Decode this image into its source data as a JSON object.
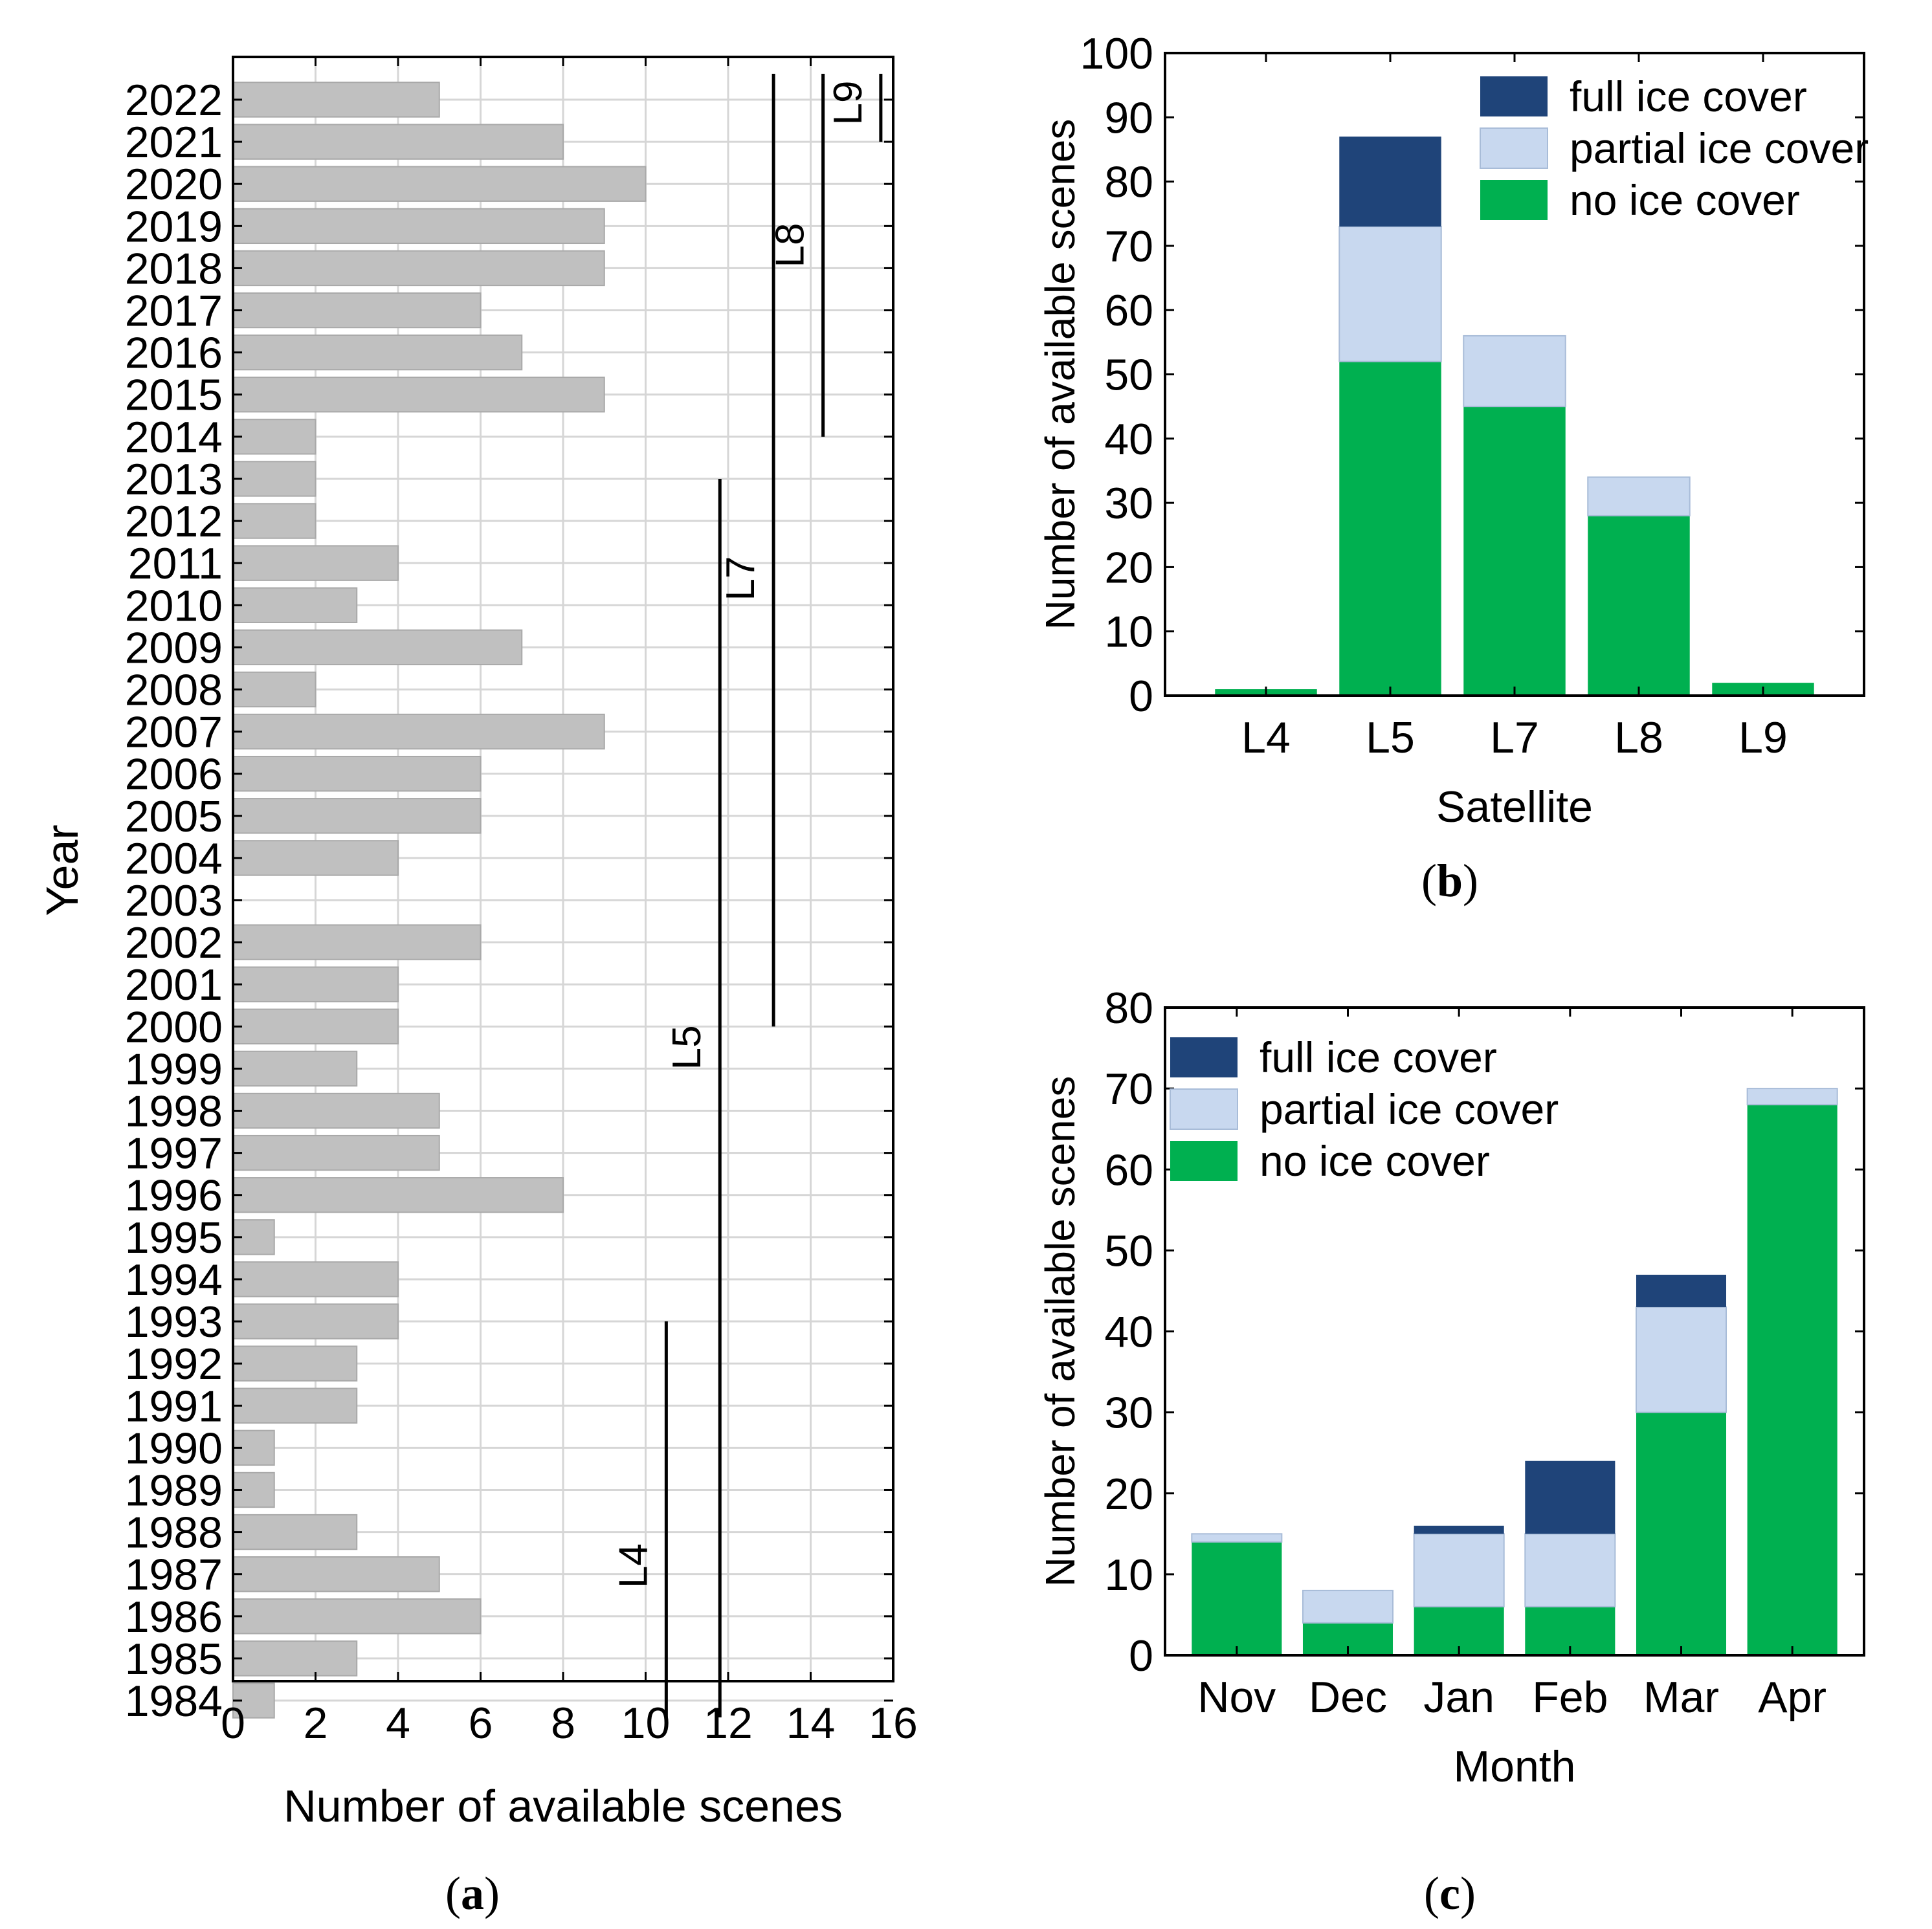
{
  "colors": {
    "bar_gray": "#c0c0c0",
    "grid": "#d6d6d6",
    "full_ice": "#1f4479",
    "partial_ice": "#c8d8ef",
    "no_ice": "#00b050",
    "axis": "#000000"
  },
  "chart_data": [
    {
      "id": "a",
      "type": "bar",
      "orientation": "horizontal",
      "panel_label": "(a)",
      "panel_letter": "a",
      "xlabel": "Number of available scenes",
      "ylabel": "Year",
      "xlim": [
        0,
        16
      ],
      "xticks": [
        "0",
        "2",
        "4",
        "6",
        "8",
        "10",
        "12",
        "14",
        "16"
      ],
      "grid": true,
      "categories": [
        "2022",
        "2021",
        "2020",
        "2019",
        "2018",
        "2017",
        "2016",
        "2015",
        "2014",
        "2013",
        "2012",
        "2011",
        "2010",
        "2009",
        "2008",
        "2007",
        "2006",
        "2005",
        "2004",
        "2003",
        "2002",
        "2001",
        "2000",
        "1999",
        "1998",
        "1997",
        "1996",
        "1995",
        "1994",
        "1993",
        "1992",
        "1991",
        "1990",
        "1989",
        "1988",
        "1987",
        "1986",
        "1985",
        "1984"
      ],
      "values": [
        5,
        8,
        10,
        9,
        9,
        6,
        7,
        9,
        2,
        2,
        2,
        4,
        3,
        7,
        2,
        9,
        6,
        6,
        4,
        0,
        6,
        4,
        4,
        3,
        5,
        5,
        8,
        1,
        4,
        4,
        3,
        3,
        1,
        1,
        3,
        5,
        6,
        3,
        1
      ],
      "satellite_periods": [
        {
          "label": "L4",
          "x": 10.5,
          "from_year": 1984,
          "to_year": 1993
        },
        {
          "label": "L5",
          "x": 11.8,
          "from_year": 1984,
          "to_year": 2013
        },
        {
          "label": "L7",
          "x": 13.1,
          "from_year": 2000,
          "to_year": 2022
        },
        {
          "label": "L8",
          "x": 14.3,
          "from_year": 2014,
          "to_year": 2022
        },
        {
          "label": "L9",
          "x": 15.7,
          "from_year": 2021,
          "to_year": 2022
        }
      ]
    },
    {
      "id": "b",
      "type": "bar",
      "stacked": true,
      "panel_label": "(b)",
      "panel_letter": "b",
      "xlabel": "Satellite",
      "ylabel": "Number of available scenes",
      "ylim": [
        0,
        100
      ],
      "yticks": [
        "0",
        "10",
        "20",
        "30",
        "40",
        "50",
        "60",
        "70",
        "80",
        "90",
        "100"
      ],
      "categories": [
        "L4",
        "L5",
        "L7",
        "L8",
        "L9"
      ],
      "series": [
        {
          "name": "no ice cover",
          "values": [
            1,
            52,
            45,
            28,
            2
          ]
        },
        {
          "name": "partial ice cover",
          "values": [
            0,
            21,
            11,
            6,
            0
          ]
        },
        {
          "name": "full ice cover",
          "values": [
            0,
            14,
            0,
            0,
            0
          ]
        }
      ],
      "legend": [
        "full ice cover",
        "partial ice cover",
        "no ice cover"
      ],
      "legend_position": "top-right"
    },
    {
      "id": "c",
      "type": "bar",
      "stacked": true,
      "panel_label": "(c)",
      "panel_letter": "c",
      "xlabel": "Month",
      "ylabel": "Number of available scenes",
      "ylim": [
        0,
        80
      ],
      "yticks": [
        "0",
        "10",
        "20",
        "30",
        "40",
        "50",
        "60",
        "70",
        "80"
      ],
      "categories": [
        "Nov",
        "Dec",
        "Jan",
        "Feb",
        "Mar",
        "Apr"
      ],
      "series": [
        {
          "name": "no ice cover",
          "values": [
            14,
            4,
            6,
            6,
            30,
            68
          ]
        },
        {
          "name": "partial ice cover",
          "values": [
            1,
            4,
            9,
            9,
            13,
            2
          ]
        },
        {
          "name": "full ice cover",
          "values": [
            0,
            0,
            1,
            9,
            4,
            0
          ]
        }
      ],
      "legend": [
        "full ice cover",
        "partial ice cover",
        "no ice cover"
      ],
      "legend_position": "top-left"
    }
  ]
}
